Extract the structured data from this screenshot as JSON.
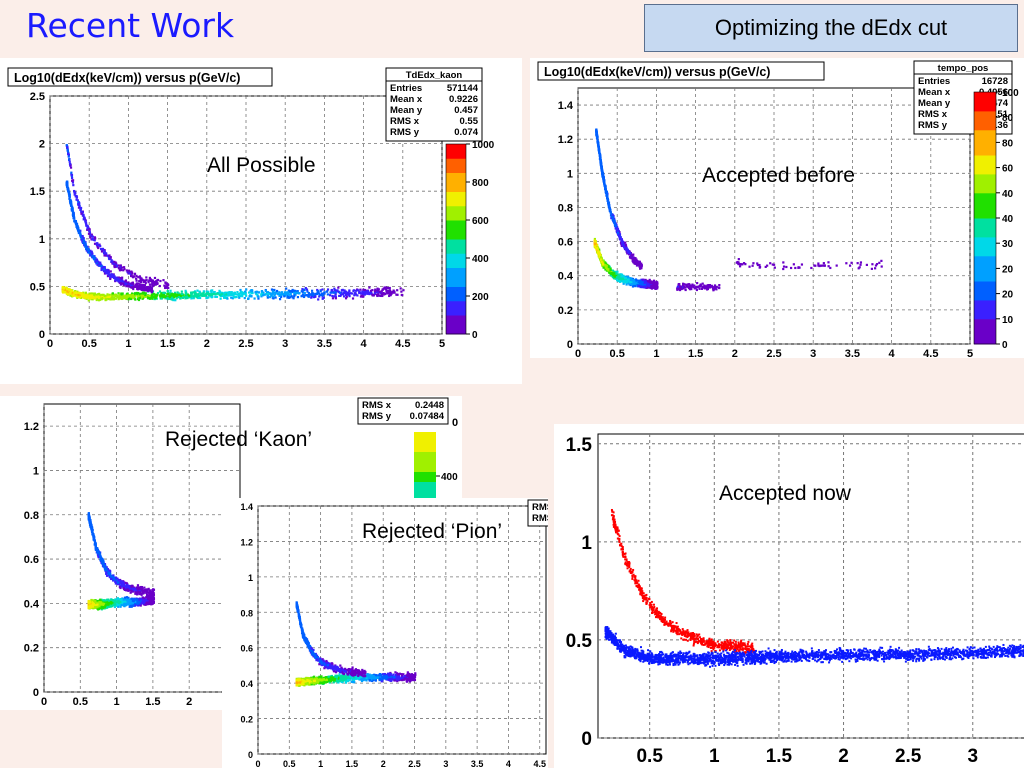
{
  "slide": {
    "title": "Recent Work",
    "subtitle": "Optimizing the dEdx cut"
  },
  "colors": {
    "title_blue": "#1a1aff",
    "accepted_red": "#ff0000",
    "accepted_blue": "#0a1aff",
    "palette": [
      "#6a00c8",
      "#3a20ff",
      "#0060ff",
      "#00a0ff",
      "#00d8e8",
      "#00e0a0",
      "#20e000",
      "#a0f000",
      "#f0f000",
      "#ffb000",
      "#ff6000",
      "#ff0000"
    ]
  },
  "chart_data": [
    {
      "id": "all-possible",
      "type": "heatmap",
      "title": "Log10(dEdx(keV/cm)) versus p(GeV/c)",
      "annotation": "All Possible",
      "xlim": [
        0,
        5
      ],
      "ylim": [
        0,
        2.5
      ],
      "xticks": [
        "0",
        "0.5",
        "1",
        "1.5",
        "2",
        "2.5",
        "3",
        "3.5",
        "4",
        "4.5",
        "5"
      ],
      "yticks": [
        "0",
        "0.5",
        "1",
        "1.5",
        "2",
        "2.5"
      ],
      "zticks": [
        "0",
        "200",
        "400",
        "600",
        "800",
        "1000"
      ],
      "zmax": 1000,
      "grid": true,
      "stats": {
        "name": "TdEdx_kaon",
        "rows": [
          [
            "Entries",
            "571144"
          ],
          [
            "Mean x",
            "0.9226"
          ],
          [
            "Mean y",
            "0.457"
          ],
          [
            "RMS x",
            "0.55"
          ],
          [
            "RMS y",
            "0.074"
          ]
        ]
      },
      "bands": [
        {
          "label": "main",
          "x": [
            0.15,
            0.3,
            0.5,
            0.8,
            1.2,
            1.8,
            2.5,
            3.5,
            4.5
          ],
          "y": [
            0.48,
            0.43,
            0.4,
            0.4,
            0.41,
            0.42,
            0.43,
            0.44,
            0.45
          ],
          "weight": 1.0
        },
        {
          "label": "kaon",
          "x": [
            0.2,
            0.3,
            0.45,
            0.6,
            0.8,
            1.0,
            1.3
          ],
          "y": [
            1.6,
            1.2,
            0.92,
            0.75,
            0.6,
            0.53,
            0.48
          ],
          "weight": 0.35
        },
        {
          "label": "proton",
          "x": [
            0.2,
            0.3,
            0.5,
            0.8,
            1.1,
            1.5
          ],
          "y": [
            2.0,
            1.5,
            1.05,
            0.75,
            0.6,
            0.52
          ],
          "weight": 0.2
        }
      ]
    },
    {
      "id": "accepted-before",
      "type": "heatmap",
      "title": "Log10(dEdx(keV/cm)) versus p(GeV/c)",
      "annotation": "Accepted before",
      "xlim": [
        0,
        5
      ],
      "ylim": [
        0,
        1.5
      ],
      "xticks": [
        "0",
        "0.5",
        "1",
        "1.5",
        "2",
        "2.5",
        "3",
        "3.5",
        "4",
        "4.5",
        "5"
      ],
      "yticks": [
        "0",
        "0.2",
        "0.4",
        "0.6",
        "0.8",
        "1",
        "1.2",
        "1.4"
      ],
      "zticks": [
        "0",
        "10",
        "20",
        "20",
        "30",
        "40",
        "40",
        "60",
        "80",
        "80",
        "100"
      ],
      "zmax": 100,
      "grid": true,
      "stats": {
        "name": "tempo_pos",
        "rows": [
          [
            "Entries",
            "16728"
          ],
          [
            "Mean x",
            "0.4056"
          ],
          [
            "Mean y",
            "0.474"
          ],
          [
            "RMS x",
            "0.151"
          ],
          [
            "RMS y",
            "0.136"
          ]
        ]
      },
      "bands": [
        {
          "label": "kaon",
          "x": [
            0.22,
            0.3,
            0.4,
            0.55,
            0.7,
            0.8
          ],
          "y": [
            1.25,
            1.0,
            0.78,
            0.6,
            0.5,
            0.46
          ],
          "weight": 0.4
        },
        {
          "label": "pion",
          "x": [
            0.2,
            0.3,
            0.45,
            0.6,
            0.8,
            1.0
          ],
          "y": [
            0.6,
            0.48,
            0.41,
            0.38,
            0.36,
            0.35
          ],
          "weight": 1.0
        },
        {
          "label": "tail-low",
          "x": [
            1.25,
            1.5,
            1.8
          ],
          "y": [
            0.34,
            0.34,
            0.34
          ],
          "weight": 0.08
        },
        {
          "label": "tail-high",
          "x": [
            2.0,
            2.5,
            3.0,
            3.5,
            4.0
          ],
          "y": [
            0.48,
            0.47,
            0.47,
            0.47,
            0.47
          ],
          "weight": 0.05
        }
      ]
    },
    {
      "id": "rejected-kaon",
      "type": "heatmap",
      "annotation": "Rejected ‘Kaon’",
      "xlim": [
        0,
        2.7
      ],
      "ylim": [
        0,
        1.3
      ],
      "xticks": [
        "0",
        "0.5",
        "1",
        "1.5",
        "2"
      ],
      "yticks": [
        "0",
        "0.2",
        "0.4",
        "0.6",
        "0.8",
        "1",
        "1.2"
      ],
      "ztick": "400",
      "grid": true,
      "stats": {
        "rows": [
          [
            "RMS x",
            "0.2448"
          ],
          [
            "RMS y",
            "0.07484"
          ]
        ],
        "extra": "0"
      },
      "bands": [
        {
          "label": "main",
          "x": [
            0.6,
            0.8,
            1.0,
            1.2,
            1.5
          ],
          "y": [
            0.4,
            0.4,
            0.41,
            0.41,
            0.42
          ],
          "weight": 1.0
        },
        {
          "label": "upper",
          "x": [
            0.6,
            0.7,
            0.85,
            1.0,
            1.2,
            1.5
          ],
          "y": [
            0.8,
            0.66,
            0.55,
            0.5,
            0.47,
            0.45
          ],
          "weight": 0.35
        }
      ],
      "xrange_cut": [
        0.6,
        1.55
      ]
    },
    {
      "id": "rejected-pion",
      "type": "heatmap",
      "annotation": "Rejected ‘Pion’",
      "xlim": [
        0,
        4.6
      ],
      "ylim": [
        0,
        1.4
      ],
      "xticks": [
        "0",
        "0.5",
        "1",
        "1.5",
        "2",
        "2.5",
        "3",
        "3.5",
        "4",
        "4.5"
      ],
      "yticks": [
        "0",
        "0.2",
        "0.4",
        "0.6",
        "0.8",
        "1",
        "1.2",
        "1.4"
      ],
      "grid": true,
      "stats": {
        "rows": [
          [
            "RMS",
            ""
          ],
          [
            "RMS",
            ""
          ]
        ]
      },
      "bands": [
        {
          "label": "main",
          "x": [
            0.6,
            0.9,
            1.2,
            1.6,
            2.0,
            2.5
          ],
          "y": [
            0.41,
            0.42,
            0.43,
            0.44,
            0.44,
            0.44
          ],
          "weight": 1.0
        },
        {
          "label": "upper",
          "x": [
            0.6,
            0.7,
            0.85,
            1.0,
            1.3,
            1.7
          ],
          "y": [
            0.85,
            0.68,
            0.58,
            0.52,
            0.48,
            0.46
          ],
          "weight": 0.35
        }
      ],
      "xrange_cut": [
        0.6,
        2.5
      ]
    },
    {
      "id": "accepted-now",
      "type": "scatter",
      "annotation": "Accepted now",
      "xlim": [
        0.1,
        3.35
      ],
      "ylim": [
        0,
        1.55
      ],
      "xticks": [
        "0.5",
        "1",
        "1.5",
        "2",
        "2.5",
        "3"
      ],
      "yticks": [
        "0",
        "0.5",
        "1",
        "1.5"
      ],
      "grid": true,
      "series": [
        {
          "color": "red",
          "x": [
            0.2,
            0.3,
            0.45,
            0.6,
            0.8,
            1.0,
            1.3
          ],
          "y": [
            1.15,
            0.92,
            0.72,
            0.6,
            0.52,
            0.48,
            0.46
          ]
        },
        {
          "color": "blue",
          "x": [
            0.15,
            0.3,
            0.5,
            1.0,
            1.5,
            2.0,
            2.5,
            3.0,
            3.4
          ],
          "y": [
            0.55,
            0.45,
            0.41,
            0.41,
            0.42,
            0.43,
            0.43,
            0.44,
            0.45
          ]
        }
      ]
    }
  ]
}
